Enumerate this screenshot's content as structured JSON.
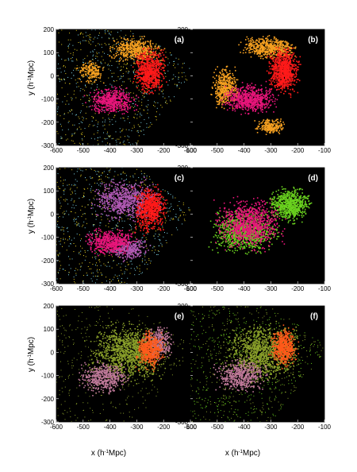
{
  "chart_data": {
    "type": "scatter",
    "axes": {
      "x": {
        "ticks": [
          -600,
          -500,
          -400,
          -300,
          -200,
          -100
        ],
        "lim": [
          -600,
          -100
        ]
      },
      "y": {
        "ticks": [
          -300,
          -200,
          -100,
          0,
          100,
          200
        ],
        "lim": [
          -300,
          200
        ]
      }
    },
    "labels": {
      "ylabel_main": "y (h",
      "ylabel_sup": "-1",
      "ylabel_tail": "Mpc)",
      "xlabel_main": "x (h",
      "xlabel_sup": "-1",
      "xlabel_tail": "Mpc)"
    },
    "colors": {
      "background": "#000000",
      "red": "#ff1a1a",
      "magenta": "#e8157a",
      "orange": "#f5a021",
      "cyan": "#7fd6e8",
      "yellow": "#e8d020",
      "violet": "#b25ab5",
      "green": "#6ad21f",
      "olive": "#8aa02a",
      "pink": "#c07a9a",
      "orangered": "#ff5a1a"
    },
    "panels": [
      {
        "label": "(a)",
        "background_dots": [
          "cyan",
          "yellow"
        ],
        "regions": [
          {
            "color": "orange",
            "cx": -300,
            "cy": 110,
            "rx": 120,
            "ry": 70,
            "density": 500
          },
          {
            "color": "orange",
            "cx": -470,
            "cy": 20,
            "rx": 60,
            "ry": 60,
            "density": 180
          },
          {
            "color": "magenta",
            "cx": -390,
            "cy": -110,
            "rx": 110,
            "ry": 70,
            "density": 500
          },
          {
            "color": "red",
            "cx": -250,
            "cy": 20,
            "rx": 70,
            "ry": 120,
            "density": 700
          }
        ]
      },
      {
        "label": "(b)",
        "background_dots": [],
        "regions": [
          {
            "color": "orange",
            "cx": -300,
            "cy": 120,
            "rx": 130,
            "ry": 60,
            "density": 600
          },
          {
            "color": "orange",
            "cx": -470,
            "cy": -50,
            "rx": 60,
            "ry": 110,
            "density": 450
          },
          {
            "color": "orange",
            "cx": -300,
            "cy": -220,
            "rx": 70,
            "ry": 40,
            "density": 250
          },
          {
            "color": "magenta",
            "cx": -380,
            "cy": -100,
            "rx": 120,
            "ry": 80,
            "density": 700
          },
          {
            "color": "red",
            "cx": -250,
            "cy": 20,
            "rx": 70,
            "ry": 120,
            "density": 800
          }
        ]
      },
      {
        "label": "(c)",
        "background_dots": [
          "cyan",
          "yellow"
        ],
        "regions": [
          {
            "color": "violet",
            "cx": -340,
            "cy": 60,
            "rx": 150,
            "ry": 110,
            "density": 700
          },
          {
            "color": "violet",
            "cx": -330,
            "cy": -150,
            "rx": 90,
            "ry": 60,
            "density": 300
          },
          {
            "color": "magenta",
            "cx": -400,
            "cy": -120,
            "rx": 110,
            "ry": 70,
            "density": 500
          },
          {
            "color": "red",
            "cx": -250,
            "cy": 20,
            "rx": 70,
            "ry": 120,
            "density": 700
          }
        ]
      },
      {
        "label": "(d)",
        "background_dots": [],
        "regions": [
          {
            "color": "green",
            "cx": -230,
            "cy": 40,
            "rx": 100,
            "ry": 90,
            "density": 700
          },
          {
            "color": "green",
            "cx": -400,
            "cy": -80,
            "rx": 150,
            "ry": 120,
            "density": 900
          },
          {
            "color": "magenta",
            "cx": -380,
            "cy": -40,
            "rx": 150,
            "ry": 130,
            "density": 900
          }
        ]
      },
      {
        "label": "(e)",
        "background_dots": [
          "olive"
        ],
        "regions": [
          {
            "color": "olive",
            "cx": -330,
            "cy": 0,
            "rx": 170,
            "ry": 150,
            "density": 1100
          },
          {
            "color": "pink",
            "cx": -420,
            "cy": -110,
            "rx": 110,
            "ry": 80,
            "density": 500
          },
          {
            "color": "pink",
            "cx": -220,
            "cy": 40,
            "rx": 70,
            "ry": 90,
            "density": 350
          },
          {
            "color": "orangered",
            "cx": -250,
            "cy": 10,
            "rx": 60,
            "ry": 100,
            "density": 500
          }
        ]
      },
      {
        "label": "(f)",
        "background_dots": [
          "olive",
          "green"
        ],
        "regions": [
          {
            "color": "olive",
            "cx": -330,
            "cy": 0,
            "rx": 170,
            "ry": 150,
            "density": 1000
          },
          {
            "color": "pink",
            "cx": -410,
            "cy": -100,
            "rx": 120,
            "ry": 90,
            "density": 500
          },
          {
            "color": "orangered",
            "cx": -250,
            "cy": 20,
            "rx": 60,
            "ry": 100,
            "density": 550
          }
        ]
      }
    ]
  }
}
